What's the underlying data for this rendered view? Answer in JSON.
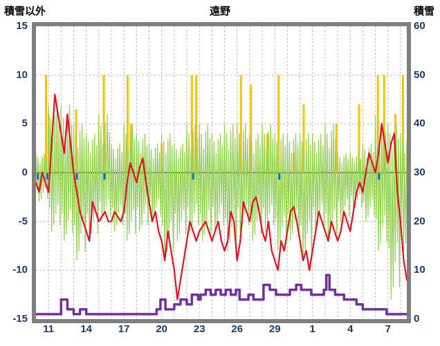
{
  "title": {
    "left_axis_label": "積雪以外",
    "station": "遠野",
    "right_axis_label": "積雪"
  },
  "colors": {
    "frame": "#7f7f7f",
    "grid": "#b3b3b3",
    "zero_line": "#595959",
    "axis_text": "#1f3864",
    "background": "#ffffff",
    "red": "#e01020",
    "green": "#92d050",
    "orange": "#ffc000",
    "purple": "#7030a0",
    "blue": "#0070c0"
  },
  "chart_data": {
    "type": "line",
    "title": "遠野",
    "x_axis": {
      "tick_labels": [
        "11",
        "14",
        "17",
        "20",
        "23",
        "26",
        "29",
        "1",
        "4",
        "7"
      ],
      "tick_days": [
        11,
        14,
        17,
        20,
        23,
        26,
        29,
        32,
        35,
        38
      ],
      "domain": [
        10,
        39.5
      ],
      "day_grid_step": 1
    },
    "left_axis": {
      "label": "積雪以外",
      "ticks": [
        15,
        10,
        5,
        0,
        -5,
        -10,
        -15
      ],
      "min": -15,
      "max": 15
    },
    "right_axis": {
      "label": "積雪",
      "ticks": [
        60,
        50,
        40,
        30,
        20,
        10,
        0
      ],
      "min": 0,
      "max": 60
    },
    "grid": true,
    "series": [
      {
        "id": "orange-bars",
        "type": "bar",
        "axis": "left",
        "color": "#ffc000",
        "baseline": 0,
        "x": [
          10.8,
          11.0,
          13.2,
          15.4,
          17.3,
          17.55,
          20.0,
          22.4,
          22.75,
          26.3,
          27.1,
          28.4,
          29.3,
          30.5,
          31.3,
          33.9,
          35.7,
          37.2,
          37.7,
          38.6,
          39.2
        ],
        "heights": [
          10,
          6,
          6.5,
          10,
          10,
          5,
          3,
          10,
          10,
          10,
          9,
          4,
          10,
          2,
          7,
          5,
          7,
          10,
          10,
          6,
          10
        ]
      },
      {
        "id": "green-oscillation",
        "type": "envelope",
        "axis": "left",
        "color": "#92d050",
        "day_start": 10,
        "top": [
          2,
          7,
          7,
          5,
          4,
          6,
          3,
          5,
          4,
          3,
          4,
          3,
          5,
          5,
          4,
          5,
          5,
          4,
          5,
          4,
          4,
          4,
          4,
          5,
          2,
          2,
          3,
          6,
          5,
          4
        ],
        "bottom": [
          -3,
          -6,
          -7,
          -9,
          -7,
          -5,
          -6,
          -7,
          -6,
          -5,
          -9,
          -7,
          -6,
          -7,
          -6,
          -8,
          -6,
          -7,
          -6,
          -8,
          -7,
          -9,
          -6,
          -7,
          -5,
          -4,
          -5,
          -8,
          -13,
          -8
        ]
      },
      {
        "id": "blue-ticks",
        "type": "tick",
        "axis": "left",
        "color": "#0070c0",
        "from": 0,
        "to": -0.7,
        "x": [
          10.15,
          10.9,
          13.25,
          15.45,
          22.5,
          29.35,
          37.3
        ]
      },
      {
        "id": "red-line",
        "type": "line",
        "axis": "left",
        "color": "#e01020",
        "x_start": 10,
        "x_step": 0.25,
        "values": [
          -1,
          -2,
          0,
          -1,
          -2,
          3,
          8,
          6,
          4,
          2,
          6,
          3,
          0,
          -2,
          -4,
          -5,
          -6,
          -7,
          -3,
          -4,
          -5,
          -4.5,
          -4,
          -5,
          -5,
          -4,
          -4.5,
          -5,
          -4,
          -1,
          1,
          0,
          -1,
          0.5,
          1.5,
          -1,
          -3,
          -5,
          -4,
          -6,
          -7,
          -9,
          -6,
          -8,
          -10,
          -13,
          -11,
          -9,
          -7,
          -5,
          -6,
          -7,
          -6,
          -5.5,
          -5,
          -6,
          -7,
          -6,
          -5,
          -7,
          -8,
          -7,
          -4,
          -5,
          -9,
          -7,
          -3,
          -4,
          -5,
          -3,
          -2.5,
          -4,
          -6,
          -7,
          -5,
          -8,
          -9,
          -10,
          -7,
          -8,
          -6,
          -4,
          -3.5,
          -5,
          -7,
          -9,
          -8,
          -10,
          -8,
          -6,
          -4,
          -5,
          -6,
          -7,
          -5,
          -6,
          -7,
          -6,
          -4,
          -5,
          -6,
          -4,
          -2,
          -1,
          -2,
          0,
          2,
          1,
          0,
          2,
          5,
          3,
          1,
          3,
          4,
          -2,
          -5,
          -9,
          -11,
          -9
        ]
      },
      {
        "id": "purple-snow-step",
        "type": "step",
        "axis": "right",
        "color": "#7030a0",
        "points": [
          [
            10,
            1
          ],
          [
            12.0,
            4
          ],
          [
            12.5,
            2
          ],
          [
            13.0,
            1
          ],
          [
            13.5,
            2
          ],
          [
            14.0,
            1
          ],
          [
            19.6,
            2
          ],
          [
            19.9,
            4
          ],
          [
            20.3,
            2
          ],
          [
            21.0,
            3
          ],
          [
            21.5,
            4
          ],
          [
            22.0,
            3
          ],
          [
            22.4,
            5
          ],
          [
            22.9,
            4
          ],
          [
            23.1,
            5
          ],
          [
            23.5,
            6
          ],
          [
            23.9,
            5
          ],
          [
            24.3,
            6
          ],
          [
            24.7,
            5
          ],
          [
            25.1,
            6
          ],
          [
            25.5,
            5
          ],
          [
            25.9,
            6
          ],
          [
            26.2,
            4
          ],
          [
            26.9,
            5
          ],
          [
            27.3,
            4
          ],
          [
            28.1,
            7
          ],
          [
            28.6,
            6
          ],
          [
            29.1,
            5
          ],
          [
            30.2,
            6
          ],
          [
            30.7,
            7
          ],
          [
            31.1,
            6
          ],
          [
            31.9,
            5
          ],
          [
            32.9,
            6
          ],
          [
            33.1,
            9
          ],
          [
            33.35,
            6
          ],
          [
            33.8,
            5
          ],
          [
            34.5,
            4
          ],
          [
            35.5,
            3
          ],
          [
            36.0,
            2
          ],
          [
            37.9,
            1
          ],
          [
            39.5,
            1
          ]
        ]
      }
    ]
  }
}
